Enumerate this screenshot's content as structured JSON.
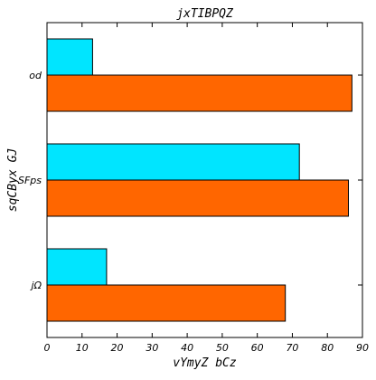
{
  "chart_data": {
    "type": "bar",
    "orientation": "horizontal",
    "title": "jxTIBPQZ",
    "xlabel": "vYmyZ bCz",
    "ylabel": "sqCByx GJ",
    "categories": [
      "jΩ",
      "SFps",
      "od"
    ],
    "series": [
      {
        "values": [
          68,
          86,
          87
        ],
        "color": "#ff6600"
      },
      {
        "values": [
          17,
          72,
          13
        ],
        "color": "#00e5ff"
      }
    ],
    "xlim": [
      0,
      90
    ],
    "xticks": [
      0,
      10,
      20,
      30,
      40,
      50,
      60,
      70,
      80,
      90
    ],
    "grid": false
  }
}
